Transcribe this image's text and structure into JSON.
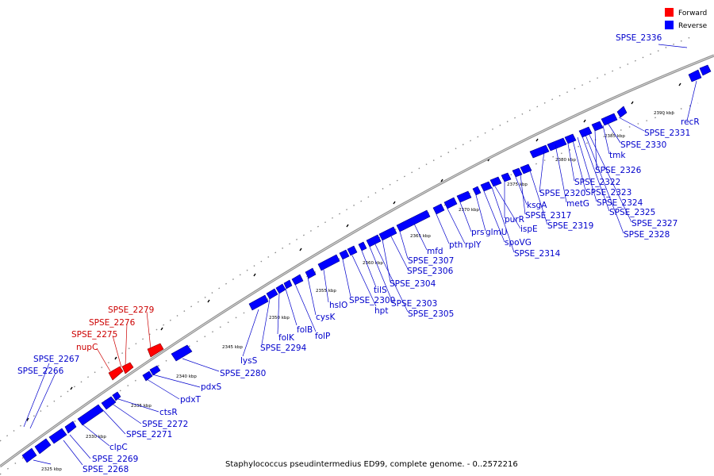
{
  "caption": "Staphylococcus pseudintermedius ED99, complete genome. - 0..2572216",
  "legend": [
    {
      "label": "Forward",
      "color": "#ff0000"
    },
    {
      "label": "Reverse",
      "color": "#0000ff"
    }
  ],
  "colors": {
    "forward": "#ff0000",
    "reverse": "#0000ff",
    "label_forward": "#cc0000",
    "label_reverse": "#0000cc",
    "backbone": "#888888"
  },
  "scale_labels": [
    "2325 kbp",
    "2330 kbp",
    "2335 kbp",
    "2340 kbp",
    "2345 kbp",
    "2350 kbp",
    "2355 kbp",
    "2360 kbp",
    "2365 kbp",
    "2370 kbp",
    "2375 kbp",
    "2380 kbp",
    "2385 kbp",
    "2390 kbp"
  ],
  "gene_labels": {
    "spse_2268": "SPSE_2268",
    "spse_2269": "SPSE_2269",
    "clpc": "clpC",
    "spse_2271": "SPSE_2271",
    "spse_2272": "SPSE_2272",
    "ctsr": "ctsR",
    "pdxt": "pdxT",
    "pdxs": "pdxS",
    "spse_2266": "SPSE_2266",
    "spse_2267": "SPSE_2267",
    "nupc": "nupC",
    "spse_2275": "SPSE_2275",
    "spse_2276": "SPSE_2276",
    "spse_2279": "SPSE_2279",
    "spse_2280": "SPSE_2280",
    "lyss": "lysS",
    "spse_2294": "SPSE_2294",
    "folk": "folK",
    "folb": "folB",
    "folp": "folP",
    "cysk": "cysK",
    "hslo": "hslO",
    "spse_2300": "SPSE_2300",
    "hpt": "hpt",
    "tils": "tilS",
    "spse_2303": "SPSE_2303",
    "spse_2305": "SPSE_2305",
    "spse_2304": "SPSE_2304",
    "spse_2306": "SPSE_2306",
    "spse_2307": "SPSE_2307",
    "mfd": "mfd",
    "pth": "pth",
    "rply": "rplY",
    "prs": "prs",
    "glmu": "glmU",
    "spovg": "spoVG",
    "spse_2314": "SPSE_2314",
    "ispe": "ispE",
    "purr": "purR",
    "ksga": "ksgA",
    "spse_2317": "SPSE_2317",
    "spse_2319": "SPSE_2319",
    "spse_2320": "SPSE_2320",
    "metg": "metG",
    "spse_2322": "SPSE_2322",
    "spse_2323": "SPSE_2323",
    "spse_2324": "SPSE_2324",
    "spse_2325": "SPSE_2325",
    "spse_2326": "SPSE_2326",
    "spse_2327": "SPSE_2327",
    "spse_2328": "SPSE_2328",
    "tmk": "tmk",
    "spse_2330": "SPSE_2330",
    "spse_2331": "SPSE_2331",
    "recr": "recR",
    "spse_2336": "SPSE_2336"
  }
}
